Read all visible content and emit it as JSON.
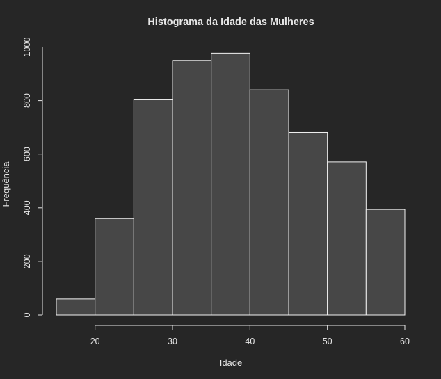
{
  "chart_data": {
    "type": "bar",
    "title": "Histograma da Idade das Mulheres",
    "xlabel": "Idade",
    "ylabel": "Frequência",
    "bins": [
      {
        "start": 15,
        "end": 20,
        "count": 60
      },
      {
        "start": 20,
        "end": 25,
        "count": 360
      },
      {
        "start": 25,
        "end": 30,
        "count": 803
      },
      {
        "start": 30,
        "end": 35,
        "count": 950
      },
      {
        "start": 35,
        "end": 40,
        "count": 977
      },
      {
        "start": 40,
        "end": 45,
        "count": 840
      },
      {
        "start": 45,
        "end": 50,
        "count": 681
      },
      {
        "start": 50,
        "end": 55,
        "count": 571
      },
      {
        "start": 55,
        "end": 60,
        "count": 394
      }
    ],
    "x_ticks": [
      "20",
      "30",
      "40",
      "50",
      "60"
    ],
    "y_ticks": [
      "0",
      "200",
      "400",
      "600",
      "800",
      "1000"
    ],
    "xlim": [
      15,
      60
    ],
    "ylim": [
      0,
      1000
    ],
    "grid": false,
    "colors": {
      "background": "#262626",
      "bar_fill": "#474747",
      "bar_stroke": "#f2f2f2",
      "axis": "#e6e6e6",
      "text": "#e6e6e6"
    }
  }
}
